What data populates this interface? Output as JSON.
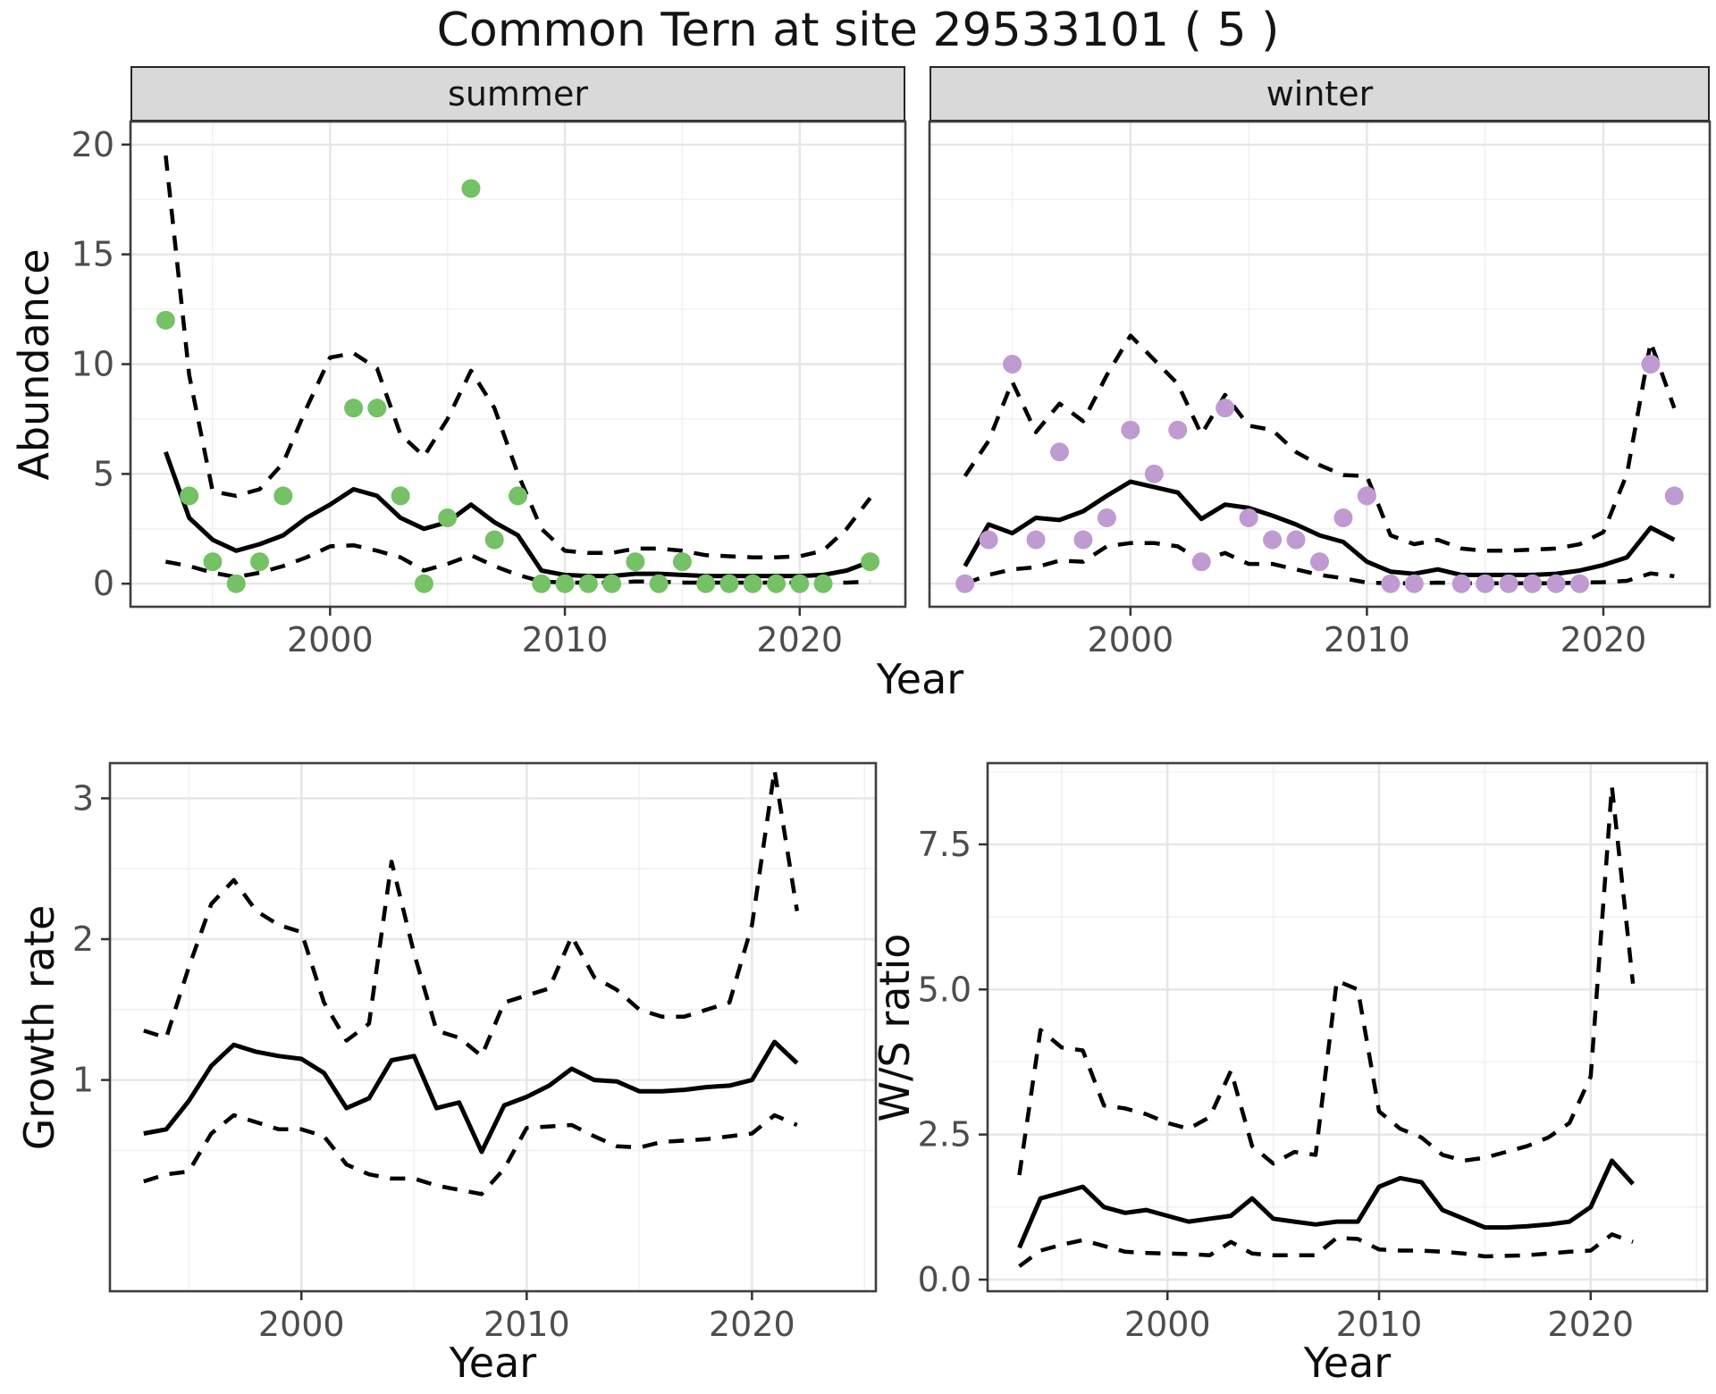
{
  "title": "Common Tern at site 29533101 ( 5 )",
  "colors": {
    "summer_points": "#74C166",
    "winter_points": "#BF9BD1",
    "fit_line": "#000000",
    "interval_line": "#000000",
    "grid_major": "#E6E6E6",
    "grid_minor": "#F2F2F2",
    "panel_border": "#3F3F3F",
    "strip_bg": "#D9D9D9",
    "tick": "#333333",
    "tick_label": "#4D4D4D"
  },
  "chart_data": [
    {
      "id": "abundance-summer",
      "type": "line",
      "subtype": "fit-with-interval-and-observations",
      "facet_label": "summer",
      "xlabel": "Year",
      "ylabel": "Abundance",
      "xlim": [
        1991.5,
        2024.5
      ],
      "ylim": [
        -1.05,
        21.05
      ],
      "xticks": [
        {
          "v": 2000,
          "label": "2000"
        },
        {
          "v": 2010,
          "label": "2010"
        },
        {
          "v": 2020,
          "label": "2020"
        }
      ],
      "yticks": [
        {
          "v": 0,
          "label": "0"
        },
        {
          "v": 5,
          "label": "5"
        },
        {
          "v": 10,
          "label": "10"
        },
        {
          "v": 15,
          "label": "15"
        },
        {
          "v": 20,
          "label": "20"
        }
      ],
      "x": [
        1993,
        1994,
        1995,
        1996,
        1997,
        1998,
        1999,
        2000,
        2001,
        2002,
        2003,
        2004,
        2005,
        2006,
        2007,
        2008,
        2009,
        2010,
        2011,
        2012,
        2013,
        2014,
        2015,
        2016,
        2017,
        2018,
        2019,
        2020,
        2021,
        2022,
        2023
      ],
      "series": [
        {
          "name": "median-fit",
          "style": "solid",
          "values": [
            6.0,
            3.0,
            2.0,
            1.5,
            1.8,
            2.2,
            3.0,
            3.6,
            4.3,
            4.0,
            3.0,
            2.5,
            2.8,
            3.6,
            2.8,
            2.2,
            0.6,
            0.4,
            0.35,
            0.35,
            0.45,
            0.45,
            0.4,
            0.35,
            0.35,
            0.35,
            0.35,
            0.35,
            0.4,
            0.6,
            1.0
          ]
        },
        {
          "name": "upper-95",
          "style": "dashed",
          "values": [
            19.5,
            9.5,
            4.2,
            4.0,
            4.3,
            5.5,
            8.0,
            10.3,
            10.5,
            9.8,
            6.8,
            5.8,
            7.5,
            9.7,
            8.0,
            5.0,
            2.5,
            1.5,
            1.4,
            1.4,
            1.6,
            1.6,
            1.5,
            1.3,
            1.25,
            1.2,
            1.2,
            1.25,
            1.5,
            2.5,
            3.9
          ]
        },
        {
          "name": "lower-95",
          "style": "dashed",
          "values": [
            1.0,
            0.8,
            0.5,
            0.3,
            0.5,
            0.8,
            1.2,
            1.7,
            1.75,
            1.5,
            1.2,
            0.6,
            0.9,
            1.3,
            0.8,
            0.4,
            0.1,
            0.05,
            0.05,
            0.05,
            0.1,
            0.1,
            0.05,
            0.05,
            0.05,
            0.05,
            0.05,
            0.05,
            0.05,
            0.05,
            0.1
          ]
        }
      ],
      "points": {
        "name": "observed-summer-counts",
        "color": "#74C166",
        "data": [
          [
            1993,
            12
          ],
          [
            1994,
            4
          ],
          [
            1995,
            1
          ],
          [
            1996,
            0
          ],
          [
            1997,
            1
          ],
          [
            1998,
            4
          ],
          [
            2001,
            8
          ],
          [
            2002,
            8
          ],
          [
            2003,
            4
          ],
          [
            2004,
            0
          ],
          [
            2005,
            3
          ],
          [
            2006,
            18
          ],
          [
            2007,
            2
          ],
          [
            2008,
            4
          ],
          [
            2009,
            0
          ],
          [
            2010,
            0
          ],
          [
            2011,
            0
          ],
          [
            2012,
            0
          ],
          [
            2013,
            1
          ],
          [
            2014,
            0
          ],
          [
            2015,
            1
          ],
          [
            2016,
            0
          ],
          [
            2017,
            0
          ],
          [
            2018,
            0
          ],
          [
            2019,
            0
          ],
          [
            2020,
            0
          ],
          [
            2021,
            0
          ],
          [
            2023,
            1
          ]
        ]
      }
    },
    {
      "id": "abundance-winter",
      "type": "line",
      "subtype": "fit-with-interval-and-observations",
      "facet_label": "winter",
      "xlabel": "Year",
      "ylabel": "Abundance",
      "xlim": [
        1991.5,
        2024.5
      ],
      "ylim": [
        -1.05,
        21.05
      ],
      "xticks": [
        {
          "v": 2000,
          "label": "2000"
        },
        {
          "v": 2010,
          "label": "2010"
        },
        {
          "v": 2020,
          "label": "2020"
        }
      ],
      "yticks": [
        {
          "v": 0,
          "label": "0"
        },
        {
          "v": 5,
          "label": "5"
        },
        {
          "v": 10,
          "label": "10"
        },
        {
          "v": 15,
          "label": "15"
        },
        {
          "v": 20,
          "label": "20"
        }
      ],
      "ytick_labels_shown": false,
      "x": [
        1993,
        1994,
        1995,
        1996,
        1997,
        1998,
        1999,
        2000,
        2001,
        2002,
        2003,
        2004,
        2005,
        2006,
        2007,
        2008,
        2009,
        2010,
        2011,
        2012,
        2013,
        2014,
        2015,
        2016,
        2017,
        2018,
        2019,
        2020,
        2021,
        2022,
        2023
      ],
      "series": [
        {
          "name": "median-fit",
          "style": "solid",
          "values": [
            0.8,
            2.7,
            2.3,
            3.0,
            2.9,
            3.3,
            4.0,
            4.65,
            4.4,
            4.15,
            2.95,
            3.6,
            3.45,
            3.1,
            2.7,
            2.2,
            1.9,
            1.0,
            0.55,
            0.45,
            0.65,
            0.4,
            0.4,
            0.4,
            0.4,
            0.45,
            0.6,
            0.85,
            1.2,
            2.55,
            2.0
          ]
        },
        {
          "name": "upper-95",
          "style": "dashed",
          "values": [
            4.9,
            6.5,
            9.2,
            6.9,
            8.2,
            7.4,
            9.5,
            11.3,
            10.2,
            9.1,
            6.8,
            8.6,
            7.2,
            7.0,
            6.0,
            5.4,
            4.95,
            4.9,
            2.2,
            1.8,
            2.0,
            1.6,
            1.5,
            1.5,
            1.55,
            1.6,
            1.8,
            2.35,
            5.0,
            11.0,
            8.0
          ]
        },
        {
          "name": "lower-95",
          "style": "dashed",
          "values": [
            0.0,
            0.4,
            0.65,
            0.75,
            1.05,
            1.0,
            1.7,
            1.85,
            1.85,
            1.7,
            1.05,
            1.4,
            0.9,
            0.9,
            0.65,
            0.4,
            0.25,
            0.05,
            0.02,
            0.02,
            0.05,
            0.02,
            0.02,
            0.02,
            0.02,
            0.02,
            0.05,
            0.07,
            0.13,
            0.47,
            0.34
          ]
        }
      ],
      "points": {
        "name": "observed-winter-counts",
        "color": "#BF9BD1",
        "data": [
          [
            1993,
            0
          ],
          [
            1994,
            2
          ],
          [
            1995,
            10
          ],
          [
            1996,
            2
          ],
          [
            1997,
            6
          ],
          [
            1998,
            2
          ],
          [
            1999,
            3
          ],
          [
            2000,
            7
          ],
          [
            2001,
            5
          ],
          [
            2002,
            7
          ],
          [
            2003,
            1
          ],
          [
            2004,
            8
          ],
          [
            2005,
            3
          ],
          [
            2006,
            2
          ],
          [
            2007,
            2
          ],
          [
            2008,
            1
          ],
          [
            2009,
            3
          ],
          [
            2010,
            4
          ],
          [
            2011,
            0
          ],
          [
            2012,
            0
          ],
          [
            2014,
            0
          ],
          [
            2015,
            0
          ],
          [
            2016,
            0
          ],
          [
            2017,
            0
          ],
          [
            2018,
            0
          ],
          [
            2019,
            0
          ],
          [
            2022,
            10
          ],
          [
            2023,
            4
          ]
        ]
      }
    },
    {
      "id": "growth-rate",
      "type": "line",
      "subtype": "fit-with-interval",
      "facet_label": null,
      "xlabel": "Year",
      "ylabel": "Growth rate",
      "xlim": [
        1991.5,
        2025.5
      ],
      "ylim": [
        -0.5,
        3.25
      ],
      "xticks": [
        {
          "v": 2000,
          "label": "2000"
        },
        {
          "v": 2010,
          "label": "2010"
        },
        {
          "v": 2020,
          "label": "2020"
        }
      ],
      "yticks": [
        {
          "v": 1,
          "label": "1"
        },
        {
          "v": 2,
          "label": "2"
        },
        {
          "v": 3,
          "label": "3"
        }
      ],
      "x": [
        1993,
        1994,
        1995,
        1996,
        1997,
        1998,
        1999,
        2000,
        2001,
        2002,
        2003,
        2004,
        2005,
        2006,
        2007,
        2008,
        2009,
        2010,
        2011,
        2012,
        2013,
        2014,
        2015,
        2016,
        2017,
        2018,
        2019,
        2020,
        2021,
        2022
      ],
      "series": [
        {
          "name": "median-growth-rate",
          "style": "solid",
          "values": [
            0.62,
            0.65,
            0.85,
            1.1,
            1.25,
            1.2,
            1.17,
            1.15,
            1.05,
            0.8,
            0.87,
            1.14,
            1.17,
            0.8,
            0.84,
            0.49,
            0.82,
            0.88,
            0.96,
            1.08,
            1.0,
            0.99,
            0.92,
            0.92,
            0.93,
            0.95,
            0.96,
            1.0,
            1.27,
            1.12
          ]
        },
        {
          "name": "upper-95",
          "style": "dashed",
          "values": [
            1.35,
            1.3,
            1.8,
            2.25,
            2.42,
            2.2,
            2.1,
            2.05,
            1.55,
            1.28,
            1.4,
            2.55,
            1.9,
            1.35,
            1.3,
            1.17,
            1.55,
            1.6,
            1.65,
            2.02,
            1.73,
            1.64,
            1.5,
            1.45,
            1.45,
            1.5,
            1.55,
            2.1,
            3.2,
            2.2
          ]
        },
        {
          "name": "lower-95",
          "style": "dashed",
          "values": [
            0.28,
            0.33,
            0.35,
            0.62,
            0.75,
            0.7,
            0.65,
            0.65,
            0.6,
            0.4,
            0.33,
            0.3,
            0.3,
            0.25,
            0.22,
            0.19,
            0.37,
            0.66,
            0.67,
            0.68,
            0.6,
            0.53,
            0.52,
            0.56,
            0.57,
            0.58,
            0.6,
            0.62,
            0.75,
            0.68
          ]
        }
      ],
      "points": null
    },
    {
      "id": "ws-ratio",
      "type": "line",
      "subtype": "fit-with-interval",
      "facet_label": null,
      "xlabel": "Year",
      "ylabel": "W/S ratio",
      "xlim": [
        1991.5,
        2025.5
      ],
      "ylim": [
        -0.2,
        8.9
      ],
      "xticks": [
        {
          "v": 2000,
          "label": "2000"
        },
        {
          "v": 2010,
          "label": "2010"
        },
        {
          "v": 2020,
          "label": "2020"
        }
      ],
      "yticks": [
        {
          "v": 0,
          "label": "0.0"
        },
        {
          "v": 2.5,
          "label": "2.5"
        },
        {
          "v": 5,
          "label": "5.0"
        },
        {
          "v": 7.5,
          "label": "7.5"
        }
      ],
      "x": [
        1993,
        1994,
        1995,
        1996,
        1997,
        1998,
        1999,
        2000,
        2001,
        2002,
        2003,
        2004,
        2005,
        2006,
        2007,
        2008,
        2009,
        2010,
        2011,
        2012,
        2013,
        2014,
        2015,
        2016,
        2017,
        2018,
        2019,
        2020,
        2021,
        2022
      ],
      "series": [
        {
          "name": "median-ws-ratio",
          "style": "solid",
          "values": [
            0.55,
            1.4,
            1.5,
            1.6,
            1.25,
            1.15,
            1.2,
            1.1,
            1.0,
            1.05,
            1.1,
            1.4,
            1.05,
            1.0,
            0.95,
            1.0,
            1.0,
            1.6,
            1.75,
            1.68,
            1.2,
            1.05,
            0.9,
            0.9,
            0.92,
            0.95,
            1.0,
            1.25,
            2.05,
            1.65
          ]
        },
        {
          "name": "upper-95",
          "style": "dashed",
          "values": [
            1.8,
            4.3,
            4.0,
            3.95,
            3.0,
            2.95,
            2.85,
            2.7,
            2.6,
            2.8,
            3.6,
            2.3,
            2.0,
            2.2,
            2.15,
            5.15,
            5.0,
            2.9,
            2.6,
            2.45,
            2.15,
            2.05,
            2.1,
            2.2,
            2.3,
            2.45,
            2.7,
            3.5,
            8.5,
            5.1
          ]
        },
        {
          "name": "lower-95",
          "style": "dashed",
          "values": [
            0.23,
            0.5,
            0.6,
            0.68,
            0.58,
            0.48,
            0.46,
            0.45,
            0.44,
            0.42,
            0.65,
            0.45,
            0.42,
            0.42,
            0.42,
            0.72,
            0.7,
            0.52,
            0.5,
            0.5,
            0.48,
            0.45,
            0.4,
            0.41,
            0.42,
            0.45,
            0.48,
            0.5,
            0.78,
            0.65
          ]
        }
      ],
      "points": null
    }
  ]
}
